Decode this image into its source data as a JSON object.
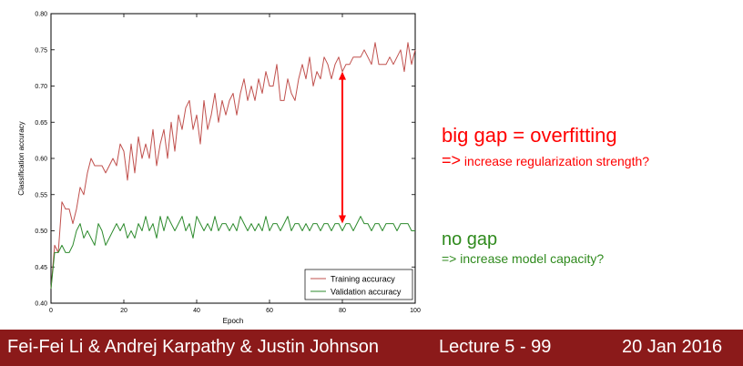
{
  "chart_data": {
    "type": "line",
    "title": "",
    "xlabel": "Epoch",
    "ylabel": "Classification accuracy",
    "xlim": [
      0,
      100
    ],
    "ylim": [
      0.4,
      0.8
    ],
    "xticks": [
      "0",
      "20",
      "40",
      "60",
      "80",
      "100"
    ],
    "yticks": [
      "0.40",
      "0.45",
      "0.50",
      "0.55",
      "0.60",
      "0.65",
      "0.70",
      "0.75",
      "0.80"
    ],
    "legend_position": "bottom-right",
    "grid": false,
    "series": [
      {
        "name": "Training accuracy",
        "color": "#c0504d",
        "x": [
          0,
          1,
          2,
          3,
          4,
          5,
          6,
          7,
          8,
          9,
          10,
          11,
          12,
          13,
          14,
          15,
          16,
          17,
          18,
          19,
          20,
          21,
          22,
          23,
          24,
          25,
          26,
          27,
          28,
          29,
          30,
          31,
          32,
          33,
          34,
          35,
          36,
          37,
          38,
          39,
          40,
          41,
          42,
          43,
          44,
          45,
          46,
          47,
          48,
          49,
          50,
          51,
          52,
          53,
          54,
          55,
          56,
          57,
          58,
          59,
          60,
          61,
          62,
          63,
          64,
          65,
          66,
          67,
          68,
          69,
          70,
          71,
          72,
          73,
          74,
          75,
          76,
          77,
          78,
          79,
          80,
          81,
          82,
          83,
          84,
          85,
          86,
          87,
          88,
          89,
          90,
          91,
          92,
          93,
          94,
          95,
          96,
          97,
          98,
          99,
          100
        ],
        "values": [
          0.42,
          0.48,
          0.47,
          0.54,
          0.53,
          0.53,
          0.51,
          0.53,
          0.56,
          0.55,
          0.58,
          0.6,
          0.59,
          0.59,
          0.59,
          0.58,
          0.59,
          0.6,
          0.59,
          0.62,
          0.61,
          0.57,
          0.62,
          0.58,
          0.63,
          0.6,
          0.62,
          0.6,
          0.64,
          0.59,
          0.62,
          0.64,
          0.6,
          0.65,
          0.61,
          0.66,
          0.64,
          0.67,
          0.68,
          0.64,
          0.66,
          0.62,
          0.68,
          0.64,
          0.66,
          0.69,
          0.65,
          0.68,
          0.66,
          0.68,
          0.69,
          0.66,
          0.69,
          0.71,
          0.68,
          0.7,
          0.68,
          0.71,
          0.69,
          0.72,
          0.7,
          0.7,
          0.73,
          0.68,
          0.68,
          0.71,
          0.69,
          0.68,
          0.71,
          0.73,
          0.71,
          0.74,
          0.7,
          0.72,
          0.71,
          0.74,
          0.73,
          0.71,
          0.73,
          0.74,
          0.72,
          0.73,
          0.73,
          0.74,
          0.74,
          0.74,
          0.75,
          0.74,
          0.73,
          0.76,
          0.73,
          0.73,
          0.73,
          0.74,
          0.73,
          0.74,
          0.75,
          0.72,
          0.76,
          0.73,
          0.75
        ]
      },
      {
        "name": "Validation accuracy",
        "color": "#2e8b2e",
        "x": [
          0,
          1,
          2,
          3,
          4,
          5,
          6,
          7,
          8,
          9,
          10,
          11,
          12,
          13,
          14,
          15,
          16,
          17,
          18,
          19,
          20,
          21,
          22,
          23,
          24,
          25,
          26,
          27,
          28,
          29,
          30,
          31,
          32,
          33,
          34,
          35,
          36,
          37,
          38,
          39,
          40,
          41,
          42,
          43,
          44,
          45,
          46,
          47,
          48,
          49,
          50,
          51,
          52,
          53,
          54,
          55,
          56,
          57,
          58,
          59,
          60,
          61,
          62,
          63,
          64,
          65,
          66,
          67,
          68,
          69,
          70,
          71,
          72,
          73,
          74,
          75,
          76,
          77,
          78,
          79,
          80,
          81,
          82,
          83,
          84,
          85,
          86,
          87,
          88,
          89,
          90,
          91,
          92,
          93,
          94,
          95,
          96,
          97,
          98,
          99,
          100
        ],
        "values": [
          0.42,
          0.47,
          0.47,
          0.48,
          0.47,
          0.47,
          0.48,
          0.5,
          0.51,
          0.49,
          0.5,
          0.49,
          0.48,
          0.51,
          0.5,
          0.48,
          0.49,
          0.5,
          0.51,
          0.5,
          0.51,
          0.49,
          0.5,
          0.49,
          0.51,
          0.5,
          0.52,
          0.5,
          0.51,
          0.49,
          0.52,
          0.5,
          0.52,
          0.51,
          0.5,
          0.51,
          0.52,
          0.5,
          0.51,
          0.49,
          0.52,
          0.51,
          0.5,
          0.51,
          0.5,
          0.52,
          0.5,
          0.51,
          0.51,
          0.5,
          0.51,
          0.5,
          0.52,
          0.51,
          0.5,
          0.51,
          0.5,
          0.51,
          0.5,
          0.52,
          0.5,
          0.51,
          0.51,
          0.5,
          0.51,
          0.52,
          0.5,
          0.51,
          0.51,
          0.5,
          0.51,
          0.5,
          0.51,
          0.51,
          0.5,
          0.51,
          0.51,
          0.5,
          0.51,
          0.51,
          0.5,
          0.51,
          0.51,
          0.5,
          0.51,
          0.52,
          0.51,
          0.51,
          0.5,
          0.51,
          0.51,
          0.5,
          0.51,
          0.51,
          0.51,
          0.5,
          0.51,
          0.51,
          0.51,
          0.5,
          0.5
        ]
      }
    ],
    "annotation_arrow": {
      "x": 80,
      "y_from": 0.72,
      "y_to": 0.51,
      "color": "#ff0000"
    }
  },
  "annotations": {
    "overfitting_title": "big gap = overfitting",
    "overfitting_arrow": "=>",
    "overfitting_text": " increase regularization strength?",
    "nogap_title": "no gap",
    "nogap_text": "=> increase model capacity?"
  },
  "footer": {
    "authors": "Fei-Fei Li & Andrej Karpathy & Justin Johnson",
    "lecture": "Lecture 5 - 99",
    "date": "20 Jan 2016"
  }
}
